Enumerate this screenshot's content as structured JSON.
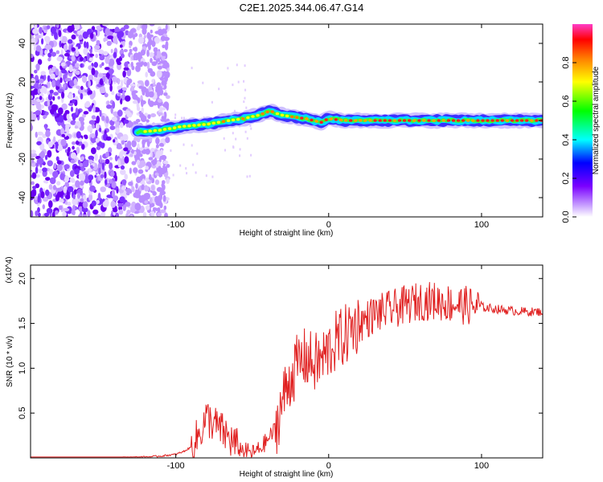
{
  "title": "C2E1.2025.344.06.47.G14",
  "chart_data": [
    {
      "type": "heatmap",
      "xlabel": "Height of straight line (km)",
      "ylabel": "Frequency (Hz)",
      "xlim": [
        -195,
        140
      ],
      "ylim": [
        -50,
        50
      ],
      "x_ticks": [
        -100,
        0,
        100
      ],
      "y_ticks": [
        -40,
        -20,
        0,
        20,
        40
      ],
      "colorbar": {
        "label": "Normalized spectral amplitude",
        "range": [
          0.0,
          1.0
        ],
        "ticks": [
          "0.0",
          "0.2",
          "0.4",
          "0.6",
          "0.8"
        ]
      },
      "ridge": {
        "x": [
          -125,
          -110,
          -95,
          -80,
          -65,
          -55,
          -45,
          -38,
          -32,
          -25,
          -15,
          -5,
          0,
          10,
          20,
          40,
          60,
          80,
          100,
          120,
          140
        ],
        "freq": [
          -6,
          -5,
          -3,
          -2,
          0,
          1,
          3,
          5,
          3,
          2,
          1,
          -1,
          1,
          0,
          0,
          0,
          0,
          0,
          0,
          0,
          0
        ]
      },
      "noise_region_x": [
        -195,
        -110
      ]
    },
    {
      "type": "line",
      "xlabel": "Height of straight line (km)",
      "ylabel": "SNR (10 * v/v)",
      "y_scale_label": "(x10^4)",
      "xlim": [
        -195,
        140
      ],
      "ylim": [
        0,
        2.15
      ],
      "x_ticks": [
        -100,
        0,
        100
      ],
      "y_ticks": [
        0.5,
        1.0,
        1.5,
        2.0
      ],
      "series": [
        {
          "color": "#e02020",
          "x": [
            -195,
            -160,
            -140,
            -120,
            -110,
            -100,
            -95,
            -90,
            -85,
            -80,
            -75,
            -70,
            -65,
            -60,
            -55,
            -50,
            -45,
            -40,
            -35,
            -30,
            -25,
            -20,
            -15,
            -10,
            -5,
            0,
            5,
            10,
            15,
            20,
            25,
            30,
            40,
            50,
            60,
            70,
            80,
            90,
            100,
            110,
            120,
            130,
            140
          ],
          "y": [
            0.0,
            0.0,
            0.0,
            0.01,
            0.02,
            0.04,
            0.07,
            0.12,
            0.25,
            0.45,
            0.38,
            0.3,
            0.22,
            0.12,
            0.08,
            0.05,
            0.1,
            0.2,
            0.32,
            0.65,
            0.9,
            1.05,
            1.12,
            1.05,
            1.08,
            1.2,
            1.3,
            1.35,
            1.45,
            1.5,
            1.55,
            1.6,
            1.65,
            1.7,
            1.75,
            1.75,
            1.72,
            1.7,
            1.68,
            1.66,
            1.64,
            1.63,
            1.63
          ]
        }
      ]
    }
  ]
}
